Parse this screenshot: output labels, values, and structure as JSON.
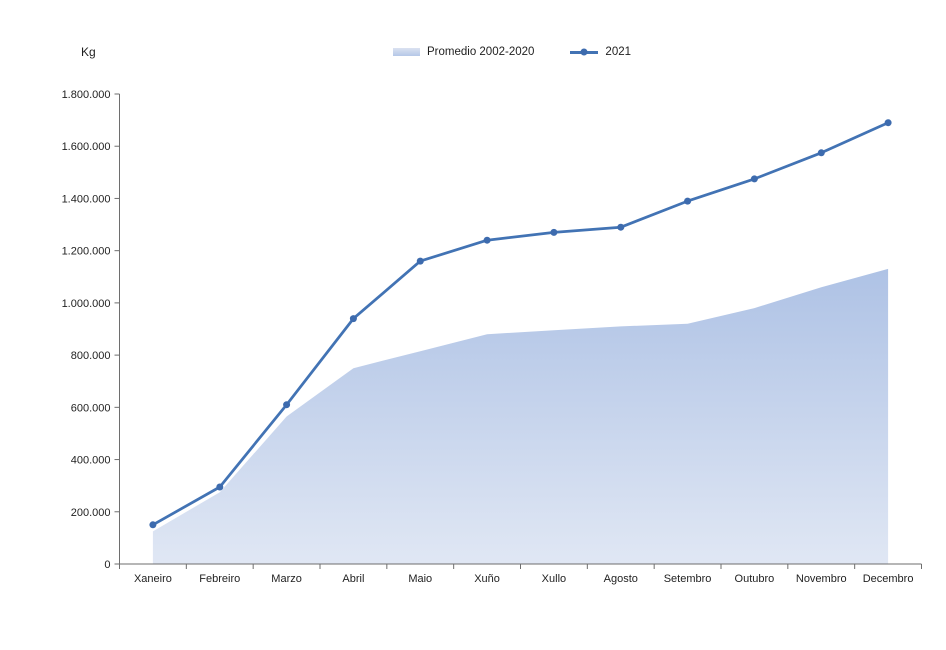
{
  "chart_data": {
    "type": "combo",
    "title": "",
    "ylabel": "Kg",
    "categories": [
      "Xaneiro",
      "Febreiro",
      "Marzo",
      "Abril",
      "Maio",
      "Xuño",
      "Xullo",
      "Agosto",
      "Setembro",
      "Outubro",
      "Novembro",
      "Decembro"
    ],
    "series": [
      {
        "name": "Promedio 2002-2020",
        "type": "area",
        "values": [
          125000,
          275000,
          565000,
          750000,
          815000,
          880000,
          895000,
          910000,
          920000,
          980000,
          1060000,
          1130000
        ],
        "fill_top": "#aec2e5",
        "fill_bottom": "#e0e7f4"
      },
      {
        "name": "2021",
        "type": "line",
        "values": [
          150000,
          295000,
          610000,
          940000,
          1160000,
          1240000,
          1270000,
          1290000,
          1390000,
          1475000,
          1575000,
          1690000
        ],
        "color": "#4273b4",
        "marker": "circle",
        "marker_color": "#3d6bae"
      }
    ],
    "ylim": [
      0,
      1800000
    ],
    "y_ticks": [
      {
        "value": 0,
        "label": "0"
      },
      {
        "value": 200000,
        "label": "200.000"
      },
      {
        "value": 400000,
        "label": "400.000"
      },
      {
        "value": 600000,
        "label": "600.000"
      },
      {
        "value": 800000,
        "label": "800.000"
      },
      {
        "value": 1000000,
        "label": "1.000.000"
      },
      {
        "value": 1200000,
        "label": "1.200.000"
      },
      {
        "value": 1400000,
        "label": "1.400.000"
      },
      {
        "value": 1600000,
        "label": "1.600.000"
      },
      {
        "value": 1800000,
        "label": "1.800.000"
      }
    ],
    "legend_position": "top-center",
    "grid": false,
    "axis_color": "#6e6e6e",
    "text_color": "#1f1f1f"
  }
}
